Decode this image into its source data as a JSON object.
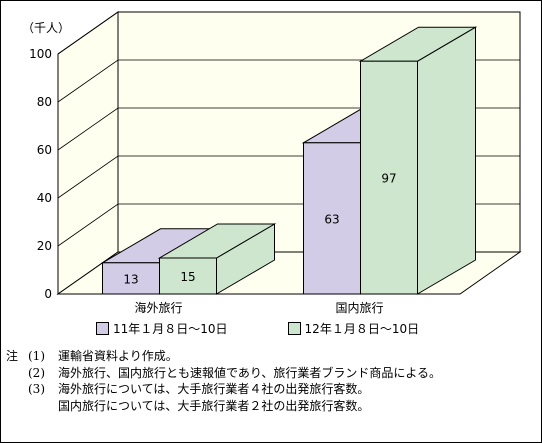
{
  "chart_data": {
    "type": "bar",
    "unit_label": "（千人）",
    "ylim": [
      0,
      100
    ],
    "yticks": [
      "0",
      "20",
      "40",
      "60",
      "80",
      "100"
    ],
    "categories": [
      "海外旅行",
      "国内旅行"
    ],
    "series": [
      {
        "name": "11年１月８日～10日",
        "values": [
          13,
          63
        ],
        "color": "#d2cce6"
      },
      {
        "name": "12年１月８日～10日",
        "values": [
          15,
          97
        ],
        "color": "#cde6cd"
      }
    ],
    "legend_position": "bottom",
    "grid": true,
    "style": "3d"
  },
  "notes": {
    "label": "注",
    "items": [
      {
        "num": "(1)",
        "text": "運輸省資料より作成。"
      },
      {
        "num": "(2)",
        "text": "海外旅行、国内旅行とも速報値であり、旅行業者ブランド商品による。"
      },
      {
        "num": "(3)",
        "text": "海外旅行については、大手旅行業者４社の出発旅行客数。"
      },
      {
        "num": "",
        "text": "国内旅行については、大手旅行業者２社の出発旅行客数。"
      }
    ]
  }
}
